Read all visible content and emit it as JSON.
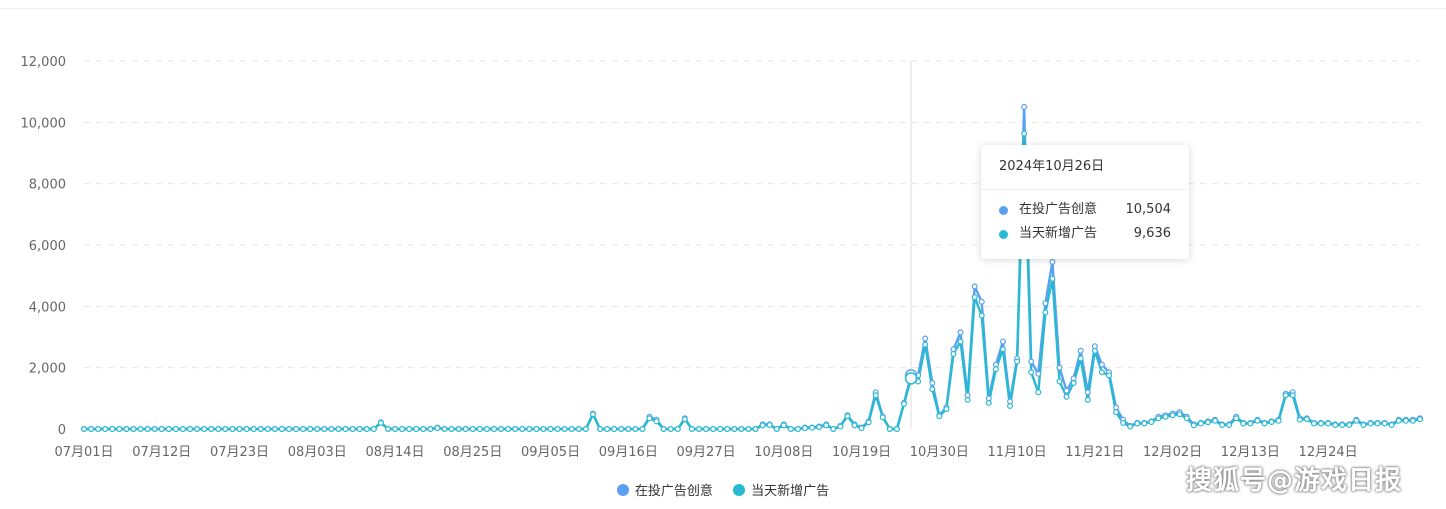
{
  "chart_data": {
    "type": "line",
    "ylim": [
      0,
      12000
    ],
    "yticks": [
      0,
      2000,
      4000,
      6000,
      8000,
      10000,
      12000
    ],
    "ytick_labels": [
      "0",
      "2,000",
      "4,000",
      "6,000",
      "8,000",
      "10,000",
      "12,000"
    ],
    "xtick_labels": [
      "07月01日",
      "07月12日",
      "07月23日",
      "08月03日",
      "08月14日",
      "08月25日",
      "09月05日",
      "09月16日",
      "09月27日",
      "10月08日",
      "10月19日",
      "10月30日",
      "11月10日",
      "11月21日",
      "12月02日",
      "12月13日",
      "12月24日"
    ],
    "x_start": "2024-07-01",
    "x_end": "2024-12-31",
    "grid": true,
    "legend_position": "bottom",
    "series": [
      {
        "name": "在投广告创意",
        "color": "#5aa1f2",
        "values": [
          0,
          0,
          0,
          0,
          0,
          0,
          0,
          0,
          0,
          0,
          0,
          0,
          0,
          0,
          0,
          0,
          0,
          0,
          0,
          0,
          0,
          0,
          0,
          0,
          0,
          0,
          0,
          0,
          0,
          0,
          0,
          0,
          0,
          0,
          0,
          0,
          0,
          0,
          0,
          0,
          0,
          0,
          220,
          0,
          0,
          0,
          0,
          0,
          0,
          0,
          50,
          0,
          0,
          0,
          0,
          0,
          0,
          0,
          0,
          0,
          0,
          0,
          0,
          0,
          0,
          0,
          0,
          0,
          0,
          0,
          0,
          0,
          500,
          0,
          0,
          0,
          0,
          0,
          0,
          0,
          400,
          300,
          0,
          0,
          0,
          350,
          0,
          0,
          0,
          0,
          0,
          0,
          0,
          0,
          0,
          0,
          150,
          150,
          0,
          150,
          0,
          0,
          50,
          50,
          80,
          150,
          0,
          100,
          450,
          150,
          50,
          250,
          1200,
          400,
          0,
          0,
          850,
          1750,
          1750,
          2950,
          1500,
          450,
          700,
          2600,
          3150,
          1100,
          4650,
          4150,
          1000,
          2100,
          2850,
          900,
          2300,
          10504,
          2200,
          1800,
          4100,
          5450,
          2000,
          1250,
          1650,
          2550,
          1200,
          2700,
          2100,
          1850,
          700,
          300,
          100,
          200,
          200,
          250,
          400,
          450,
          500,
          550,
          400,
          150,
          200,
          250,
          300,
          150,
          150,
          400,
          200,
          200,
          300,
          200,
          250,
          300,
          1150,
          1200,
          350,
          350,
          200,
          200,
          200,
          150,
          150,
          150,
          300,
          150,
          200,
          200,
          200,
          150,
          300,
          300,
          300,
          350
        ]
      },
      {
        "name": "当天新增广告",
        "color": "#29bad1",
        "values": [
          0,
          0,
          0,
          0,
          0,
          0,
          0,
          0,
          0,
          0,
          0,
          0,
          0,
          0,
          0,
          0,
          0,
          0,
          0,
          0,
          0,
          0,
          0,
          0,
          0,
          0,
          0,
          0,
          0,
          0,
          0,
          0,
          0,
          0,
          0,
          0,
          0,
          0,
          0,
          0,
          0,
          0,
          200,
          0,
          0,
          0,
          0,
          0,
          0,
          0,
          30,
          0,
          0,
          0,
          0,
          0,
          0,
          0,
          0,
          0,
          0,
          0,
          0,
          0,
          0,
          0,
          0,
          0,
          0,
          0,
          0,
          0,
          480,
          0,
          0,
          0,
          0,
          0,
          0,
          0,
          350,
          250,
          0,
          0,
          0,
          320,
          0,
          0,
          0,
          0,
          0,
          0,
          0,
          0,
          0,
          0,
          120,
          130,
          0,
          120,
          0,
          0,
          30,
          40,
          60,
          120,
          0,
          80,
          420,
          120,
          30,
          220,
          1100,
          380,
          0,
          0,
          820,
          1650,
          1550,
          2750,
          1300,
          420,
          650,
          2450,
          2850,
          950,
          4300,
          3700,
          850,
          1950,
          2600,
          750,
          2200,
          9636,
          1850,
          1200,
          3800,
          4900,
          1550,
          1050,
          1500,
          2300,
          950,
          2550,
          1850,
          1750,
          550,
          200,
          80,
          180,
          180,
          230,
          350,
          400,
          450,
          480,
          350,
          120,
          180,
          220,
          270,
          130,
          130,
          350,
          180,
          180,
          270,
          180,
          230,
          270,
          1100,
          1100,
          300,
          320,
          180,
          180,
          180,
          130,
          130,
          130,
          270,
          130,
          180,
          180,
          180,
          130,
          270,
          270,
          270,
          320
        ]
      }
    ]
  },
  "tooltip": {
    "title": "2024年10月26日",
    "rows": [
      {
        "name": "在投广告创意",
        "value": "10,504",
        "color": "#5aa1f2"
      },
      {
        "name": "当天新增广告",
        "value": "9,636",
        "color": "#29bad1"
      }
    ]
  },
  "legend": [
    {
      "label": "在投广告创意",
      "color": "#5aa1f2"
    },
    {
      "label": "当天新增广告",
      "color": "#29bad1"
    }
  ],
  "watermark": "搜狐号@游戏日报"
}
